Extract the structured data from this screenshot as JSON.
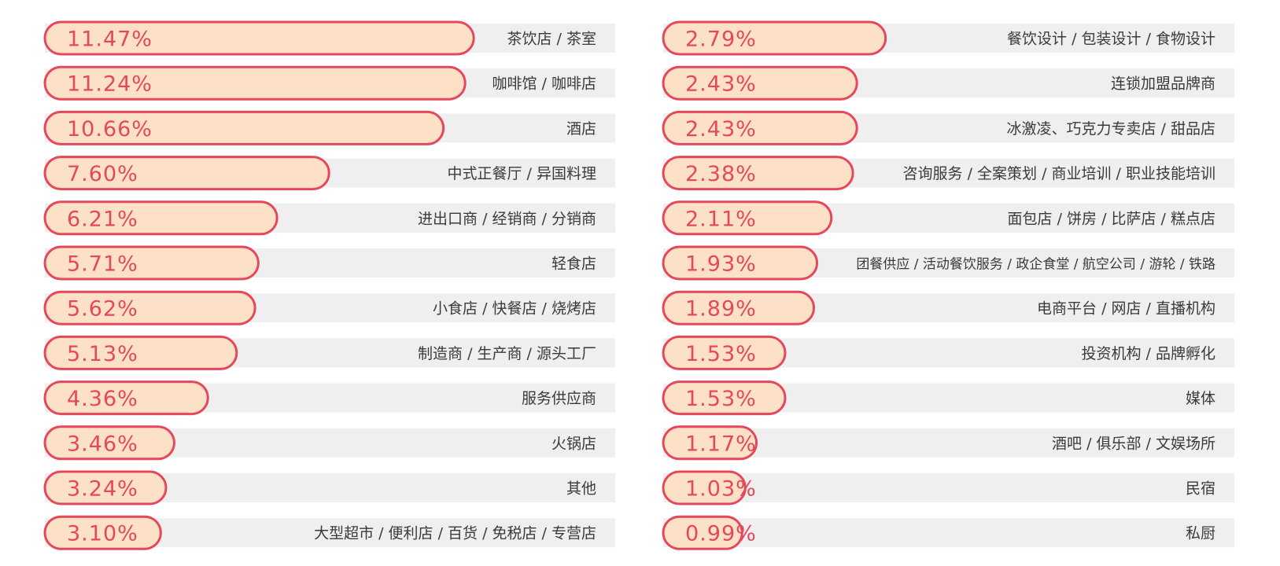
{
  "colors": {
    "bar_fill": "#fde1c6",
    "bar_stroke": "#e5475d",
    "value_text": "#e5475d",
    "track": "#efefef",
    "label_text": "#3a3a3a"
  },
  "chart_data": [
    {
      "type": "bar",
      "orientation": "horizontal",
      "unit": "%",
      "xlim": [
        0,
        16.2
      ],
      "categories": [
        "茶饮店 / 茶室",
        "咖啡馆 / 咖啡店",
        "酒店",
        "中式正餐厅 / 异国料理",
        "进出口商 / 经销商 / 分销商",
        "轻食店",
        "小食店 / 快餐店 / 烧烤店",
        "制造商 / 生产商 / 源头工厂",
        "服务供应商",
        "火锅店",
        "其他",
        "大型超市 / 便利店 / 百货 / 免税店 / 专营店"
      ],
      "values": [
        11.47,
        11.24,
        10.66,
        7.6,
        6.21,
        5.71,
        5.62,
        5.13,
        4.36,
        3.46,
        3.24,
        3.1
      ],
      "value_labels": [
        "11.47%",
        "11.24%",
        "10.66%",
        "7.60%",
        "6.21%",
        "5.71%",
        "5.62%",
        "5.13%",
        "4.36%",
        "3.46%",
        "3.24%",
        "3.10%"
      ]
    },
    {
      "type": "bar",
      "orientation": "horizontal",
      "unit": "%",
      "xlim": [
        0,
        7.6
      ],
      "categories": [
        "餐饮设计 / 包装设计 / 食物设计",
        "连锁加盟品牌商",
        "冰激凌、巧克力专卖店 / 甜品店",
        "咨询服务 / 全案策划 / 商业培训 / 职业技能培训",
        "面包店 / 饼房 / 比萨店 / 糕点店",
        "团餐供应 / 活动餐饮服务 / 政企食堂 / 航空公司 / 游轮 / 铁路",
        "电商平台 / 网店 / 直播机构",
        "投资机构 / 品牌孵化",
        "媒体",
        "酒吧 / 俱乐部 / 文娱场所",
        "民宿",
        "私厨"
      ],
      "values": [
        2.79,
        2.43,
        2.43,
        2.38,
        2.11,
        1.93,
        1.89,
        1.53,
        1.53,
        1.17,
        1.03,
        0.99
      ],
      "value_labels": [
        "2.79%",
        "2.43%",
        "2.43%",
        "2.38%",
        "2.11%",
        "1.93%",
        "1.89%",
        "1.53%",
        "1.53%",
        "1.17%",
        "1.03%",
        "0.99%"
      ]
    }
  ]
}
